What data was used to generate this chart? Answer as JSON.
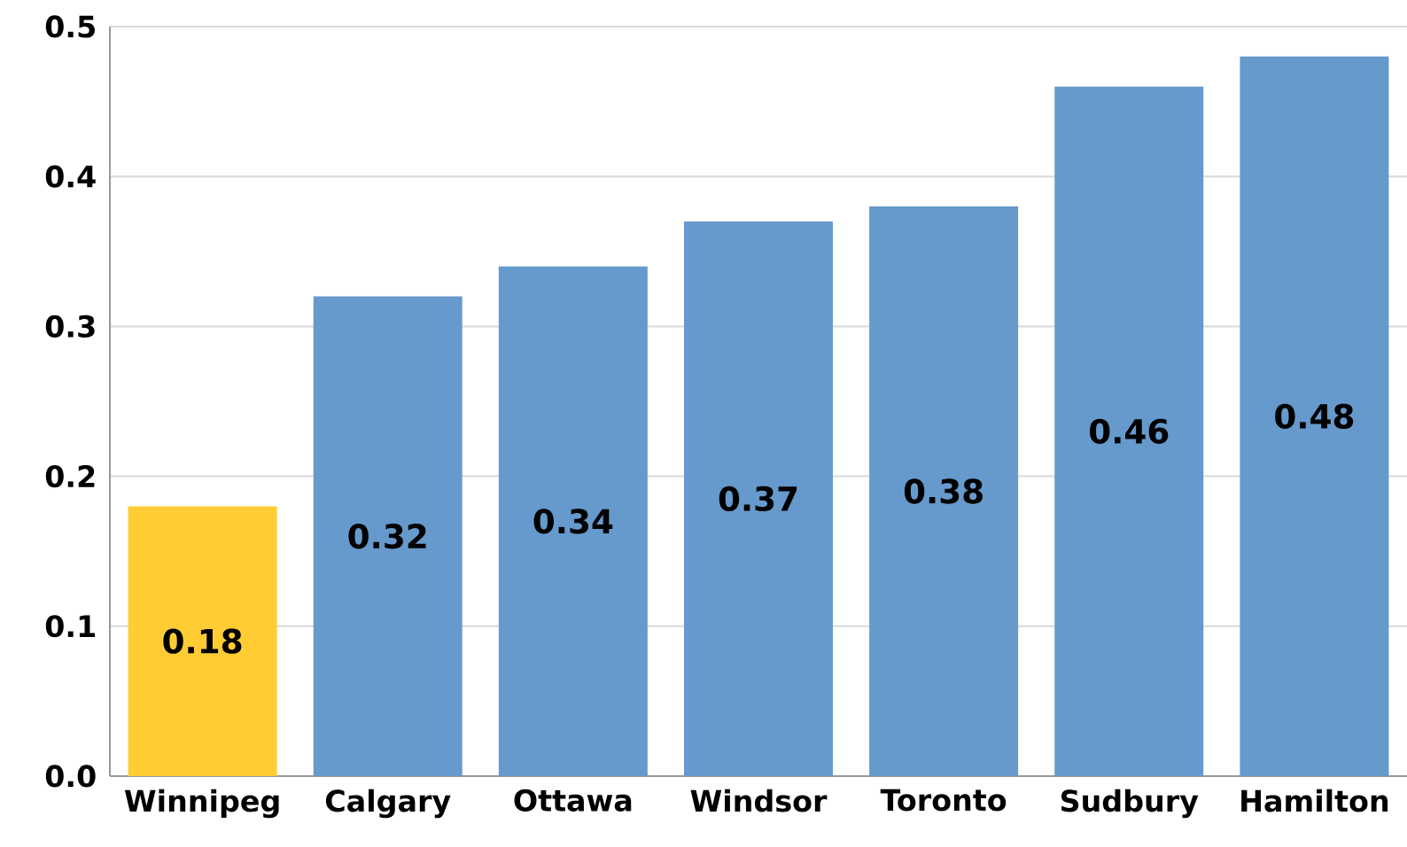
{
  "chart_data": {
    "type": "bar",
    "categories": [
      "Winnipeg",
      "Calgary",
      "Ottawa",
      "Windsor",
      "Toronto",
      "Sudbury",
      "Hamilton"
    ],
    "values": [
      0.18,
      0.32,
      0.34,
      0.37,
      0.38,
      0.46,
      0.48
    ],
    "colors": [
      "#ffcc33",
      "#6699cc",
      "#6699cc",
      "#6699cc",
      "#6699cc",
      "#6699cc",
      "#6699cc"
    ],
    "ylim": [
      0,
      0.5
    ],
    "yticks": [
      {
        "value": 0,
        "label": "0.0"
      },
      0.1,
      0.2,
      0.3,
      0.4,
      0.5
    ],
    "grid": "y",
    "data_labels": true
  }
}
